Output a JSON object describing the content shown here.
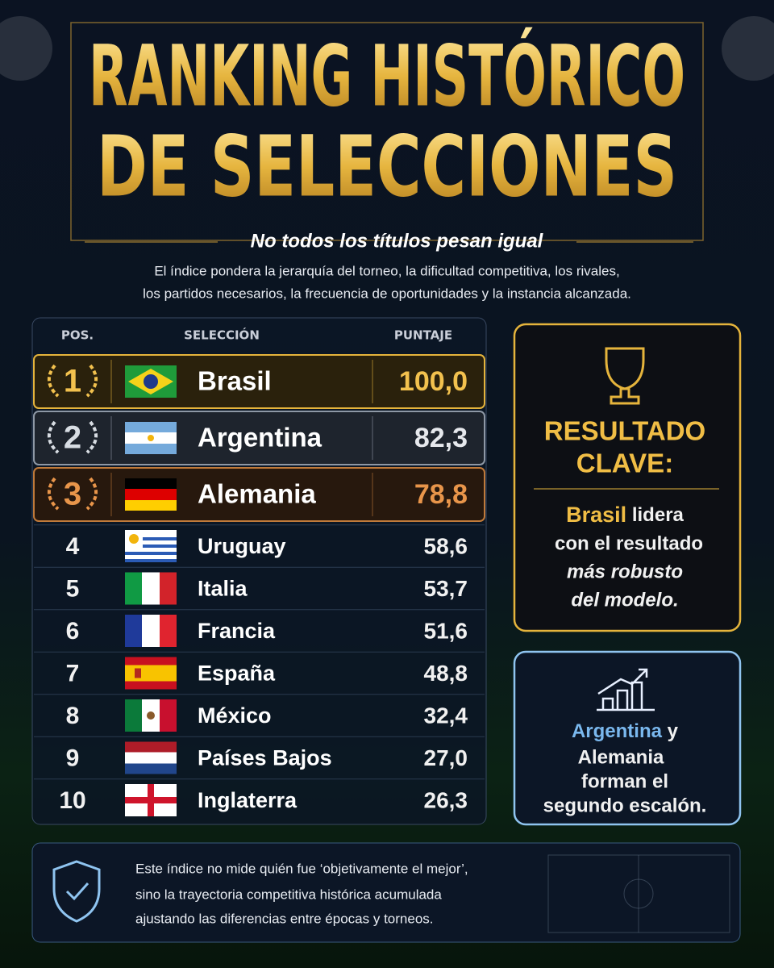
{
  "header": {
    "title_lines": [
      "RANKING HISTÓRICO",
      "DE SELECCIONES"
    ],
    "subtitle": "No todos los títulos pesan igual",
    "description_lines": [
      "El índice pondera la jerarquía del torneo, la dificultad competitiva, los rivales,",
      "los partidos necesarios, la frecuencia de oportunidades y la instancia alcanzada."
    ]
  },
  "table": {
    "columns": [
      "POS.",
      "SELECCIÓN",
      "PUNTAJE"
    ],
    "rows": [
      [
        "1",
        "Brasil",
        "100,0"
      ],
      [
        "2",
        "Argentina",
        "82,3"
      ],
      [
        "3",
        "Alemania",
        "78,8"
      ],
      [
        "4",
        "Uruguay",
        "58,6"
      ],
      [
        "5",
        "Italia",
        "53,7"
      ],
      [
        "6",
        "Francia",
        "51,6"
      ],
      [
        "7",
        "España",
        "48,8"
      ],
      [
        "8",
        "México",
        "32,4"
      ],
      [
        "9",
        "Países Bajos",
        "27,0"
      ],
      [
        "10",
        "Inglaterra",
        "26,3"
      ]
    ]
  },
  "key_result": {
    "title_lines": [
      "RESULTADO",
      "CLAVE:"
    ],
    "highlight": "Brasil",
    "lines": [
      "lidera",
      "con el resultado",
      "más robusto",
      "del modelo."
    ]
  },
  "second_tier": {
    "highlight_1": "Argentina",
    "joiner": "y",
    "highlight_2": "Alemania",
    "lines": [
      "forman el",
      "segundo escalón."
    ]
  },
  "footer": {
    "lines": [
      "Este índice no mide quién fue ‘objetivamente el mejor’,",
      "sino la trayectoria competitiva histórica acumulada",
      "ajustando las diferencias entre épocas y torneos."
    ]
  }
}
